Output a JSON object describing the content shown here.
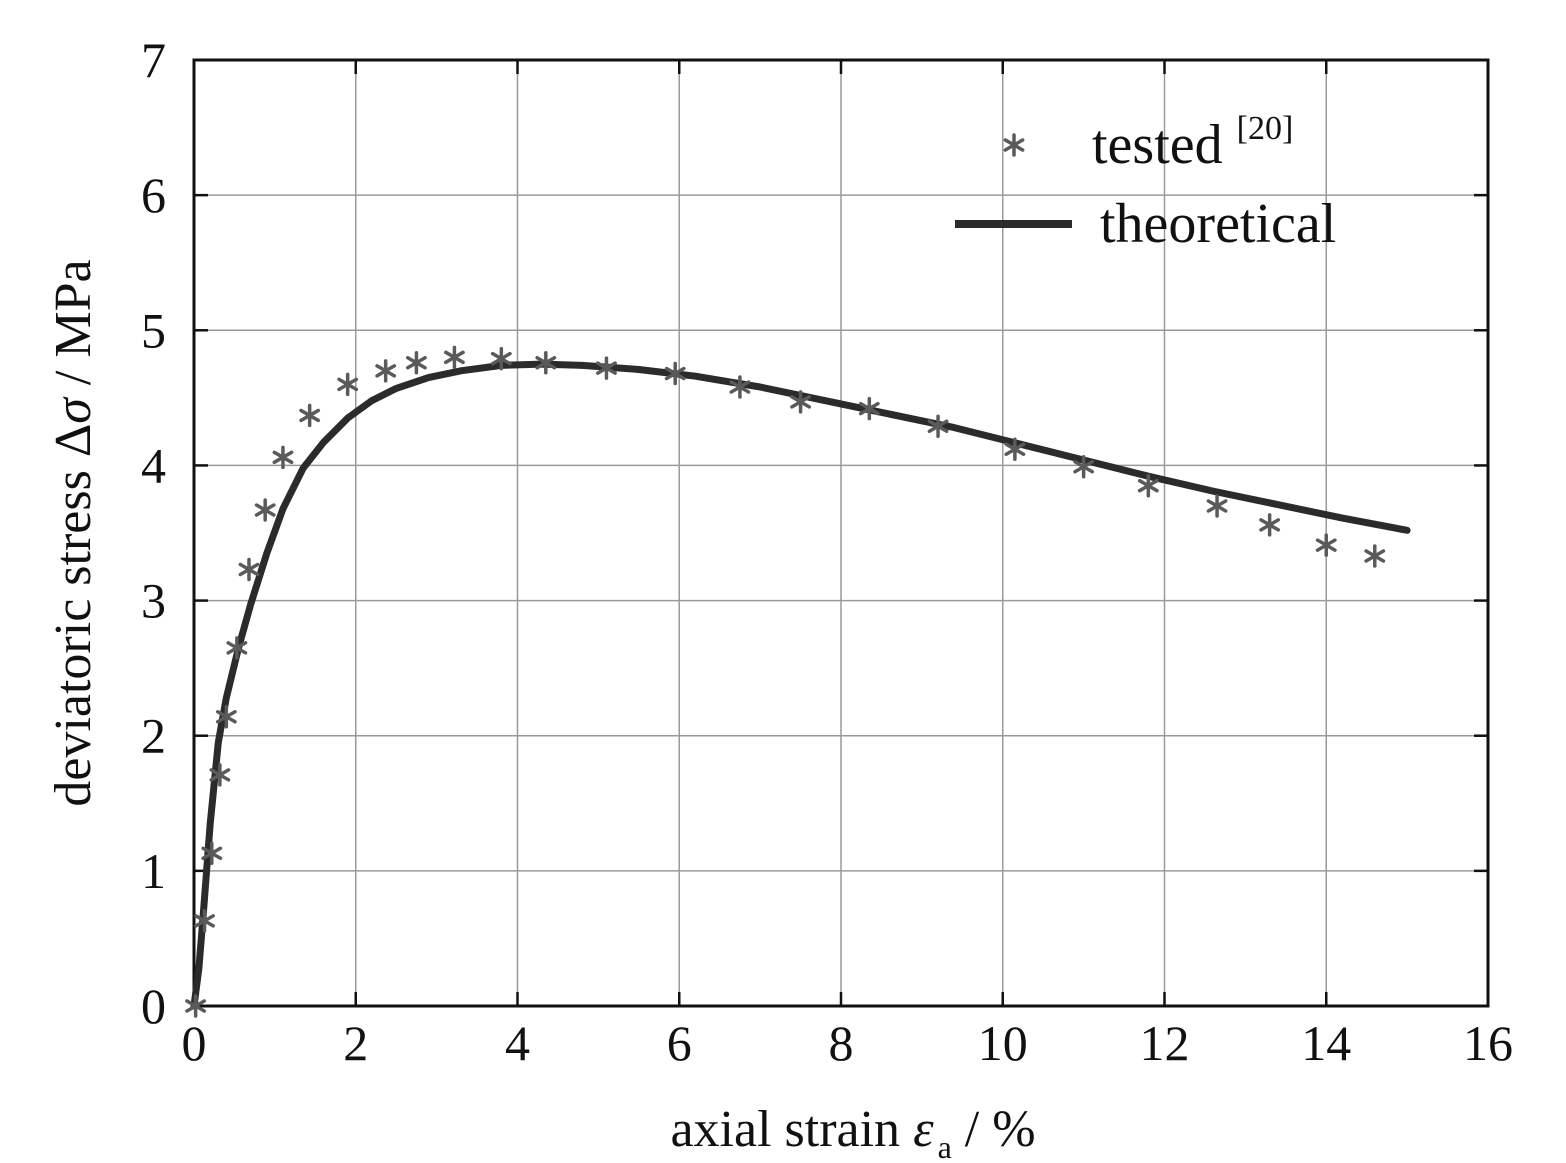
{
  "chart_data": {
    "type": "line",
    "xlabel": {
      "main": "axial strain ",
      "symbol": "ε",
      "sub": "a",
      "tail": " / %"
    },
    "ylabel": {
      "main": "deviatoric stress ",
      "delta": "Δ",
      "symbol": "σ",
      "tail": " / MPa"
    },
    "xlim": [
      0,
      16
    ],
    "ylim": [
      0,
      7
    ],
    "xticks": [
      "0",
      "2",
      "4",
      "6",
      "8",
      "10",
      "12",
      "14",
      "16"
    ],
    "yticks": [
      "0",
      "1",
      "2",
      "3",
      "4",
      "5",
      "6",
      "7"
    ],
    "grid": true,
    "legend_position": "top-right",
    "colors": {
      "tested": "#5a5a5a",
      "theoretical": "#2b2b2b",
      "grid": "#9a9a9a",
      "frame": "#111111"
    },
    "series": [
      {
        "name": "tested",
        "name_sup": "[20]",
        "marker": "asterisk",
        "x": [
          0.02,
          0.13,
          0.22,
          0.32,
          0.4,
          0.53,
          0.68,
          0.88,
          1.1,
          1.43,
          1.9,
          2.37,
          2.75,
          3.22,
          3.8,
          4.35,
          5.1,
          5.95,
          6.75,
          7.5,
          8.35,
          9.2,
          10.15,
          11.0,
          11.8,
          12.65,
          13.3,
          14.0,
          14.6
        ],
        "y": [
          0.0,
          0.63,
          1.13,
          1.71,
          2.14,
          2.65,
          3.23,
          3.67,
          4.06,
          4.37,
          4.6,
          4.7,
          4.76,
          4.8,
          4.79,
          4.76,
          4.72,
          4.68,
          4.58,
          4.47,
          4.42,
          4.29,
          4.12,
          3.99,
          3.85,
          3.7,
          3.56,
          3.41,
          3.33
        ]
      },
      {
        "name": "theoretical",
        "marker": "none",
        "x": [
          0.0,
          0.06,
          0.12,
          0.2,
          0.3,
          0.4,
          0.55,
          0.7,
          0.9,
          1.1,
          1.35,
          1.6,
          1.9,
          2.2,
          2.5,
          2.9,
          3.3,
          3.8,
          4.3,
          4.8,
          5.5,
          6.2,
          7.0,
          7.8,
          8.6,
          9.4,
          10.2,
          11.0,
          11.8,
          12.6,
          13.4,
          14.2,
          15.0
        ],
        "y": [
          0.0,
          0.28,
          0.72,
          1.35,
          1.95,
          2.28,
          2.65,
          2.97,
          3.35,
          3.68,
          3.98,
          4.17,
          4.35,
          4.48,
          4.57,
          4.65,
          4.7,
          4.74,
          4.75,
          4.74,
          4.71,
          4.66,
          4.58,
          4.48,
          4.38,
          4.28,
          4.16,
          4.04,
          3.92,
          3.81,
          3.71,
          3.61,
          3.52
        ]
      }
    ]
  }
}
